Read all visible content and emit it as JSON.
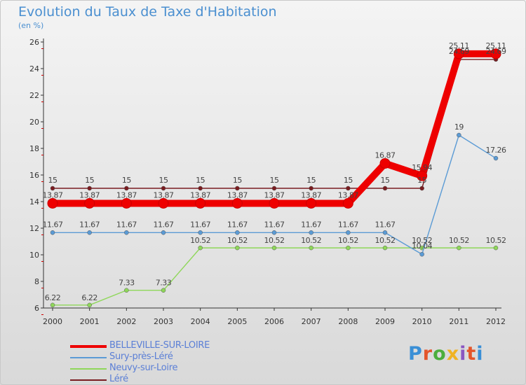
{
  "title": "Evolution du Taux de Taxe d'Habitation",
  "subtitle": "(en %)",
  "logo": {
    "text": "Proxiti",
    "letter_colors": [
      "#3a8fd6",
      "#e4552b",
      "#4cae3c",
      "#f0b323",
      "#8a56c2",
      "#e4552b",
      "#3a8fd6"
    ]
  },
  "chart_data": {
    "type": "line",
    "x": [
      "2000",
      "2001",
      "2002",
      "2003",
      "2004",
      "2005",
      "2006",
      "2007",
      "2008",
      "2009",
      "2010",
      "2011",
      "2012"
    ],
    "ylim": [
      6,
      26
    ],
    "yticks": [
      "6",
      "8",
      "10",
      "12",
      "14",
      "16",
      "18",
      "20",
      "22",
      "24",
      "26"
    ],
    "grid": false,
    "legend_position": "bottom-left",
    "series": [
      {
        "name": "Léré",
        "color": "#7a1c20",
        "values": [
          15,
          15,
          15,
          15,
          15,
          15,
          15,
          15,
          15,
          15,
          15,
          24.69,
          24.69
        ],
        "labels": [
          "15",
          "15",
          "15",
          "15",
          "15",
          "15",
          "15",
          "15",
          "15",
          "15",
          "15",
          "24.69",
          "24.69"
        ]
      },
      {
        "name": "Neuvy-sur-Loire",
        "color": "#8fd75a",
        "values": [
          6.22,
          6.22,
          7.33,
          7.33,
          10.52,
          10.52,
          10.52,
          10.52,
          10.52,
          10.52,
          10.52,
          10.52,
          10.52
        ],
        "labels": [
          "6.22",
          "6.22",
          "7.33",
          "7.33",
          "10.52",
          "10.52",
          "10.52",
          "10.52",
          "10.52",
          "10.52",
          "10.52",
          "10.52",
          "10.52"
        ]
      },
      {
        "name": "Sury-près-Léré",
        "color": "#5b9bd5",
        "values": [
          11.67,
          11.67,
          11.67,
          11.67,
          11.67,
          11.67,
          11.67,
          11.67,
          11.67,
          11.67,
          10.04,
          19,
          17.26
        ],
        "labels": [
          "11.67",
          "11.67",
          "11.67",
          "11.67",
          "11.67",
          "11.67",
          "11.67",
          "11.67",
          "11.67",
          "11.67",
          "10.04",
          "19",
          "17.26"
        ]
      },
      {
        "name": "BELLEVILLE-SUR-LOIRE",
        "color": "#ee0000",
        "values": [
          13.87,
          13.87,
          13.87,
          13.87,
          13.87,
          13.87,
          13.87,
          13.87,
          13.87,
          16.87,
          15.94,
          25.11,
          25.11
        ],
        "labels": [
          "13.87",
          "13.87",
          "13.87",
          "13.87",
          "13.87",
          "13.87",
          "13.87",
          "13.87",
          "13.87",
          "16.87",
          "15.94",
          "25.11",
          "25.11"
        ]
      }
    ],
    "legend_order": [
      "BELLEVILLE-SUR-LOIRE",
      "Sury-près-Léré",
      "Neuvy-sur-Loire",
      "Léré"
    ]
  }
}
